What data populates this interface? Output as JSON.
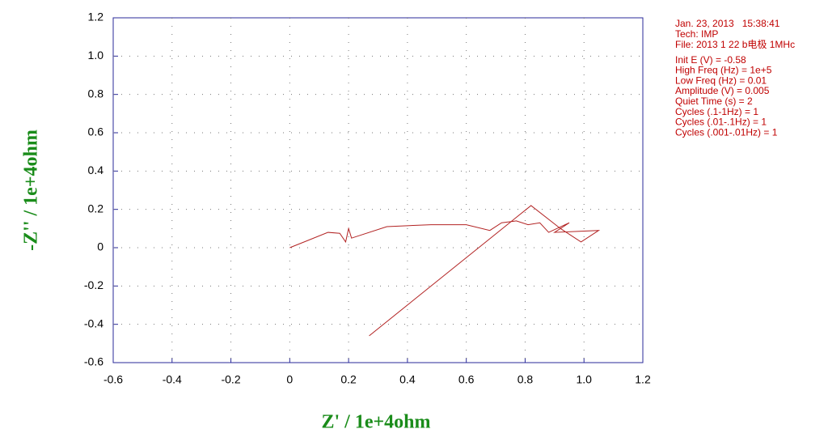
{
  "chart_data": {
    "type": "line",
    "x_label": "Z' / 1e+4ohm",
    "y_label": "-Z'' / 1e+4ohm",
    "x": [
      0,
      0.13,
      0.17,
      0.19,
      0.2,
      0.21,
      0.33,
      0.48,
      0.6,
      0.68,
      0.72,
      0.77,
      0.81,
      0.85,
      0.88,
      0.95,
      0.9,
      1.05,
      0.99,
      0.92,
      0.82,
      0.27
    ],
    "color": "#b22222",
    "values": [
      0,
      0.08,
      0.075,
      0.03,
      0.1,
      0.05,
      0.11,
      0.12,
      0.12,
      0.09,
      0.13,
      0.14,
      0.12,
      0.13,
      0.08,
      0.13,
      0.08,
      0.09,
      0.03,
      0.1,
      0.22,
      -0.46
    ],
    "xlim": [
      -0.6,
      1.2
    ],
    "xticks": [
      -0.6,
      -0.4,
      -0.2,
      0,
      0.2,
      0.4,
      0.6,
      0.8,
      {
        "value": 1,
        "label": "1.0"
      },
      1.2
    ],
    "ylim": [
      -0.6,
      1.2
    ],
    "yticks": [
      -0.6,
      -0.4,
      -0.2,
      0,
      0.2,
      0.4,
      0.6,
      0.8,
      {
        "value": 1,
        "label": "1.0"
      },
      1.2
    ],
    "grid": true,
    "annotations": [
      "Jan. 23, 2013   15:38:41",
      "Tech: IMP",
      "File: 2013 1 22 b电极 1MHc",
      "Init E (V) = -0.58",
      "High Freq (Hz) = 1e+5",
      "Low Freq (Hz) = 0.01",
      "Amplitude (V) = 0.005",
      "Quiet Time (s) = 2",
      "Cycles (.1-1Hz) = 1",
      "Cycles (.01-.1Hz) = 1",
      "Cycles (.001-.01Hz) = 1"
    ]
  }
}
